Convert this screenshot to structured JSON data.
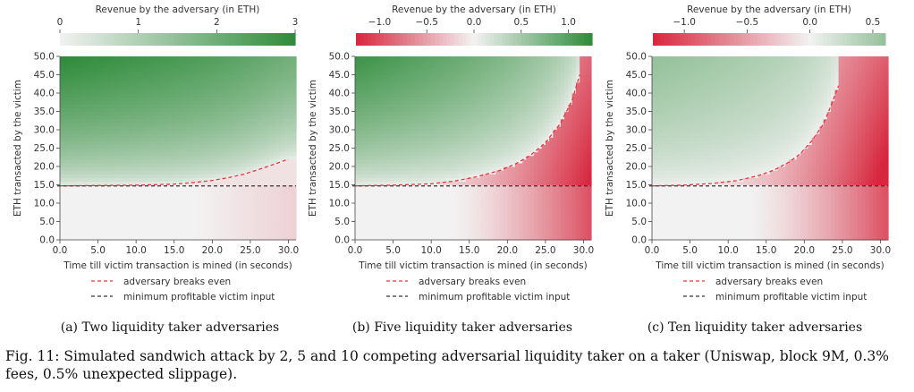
{
  "legend_labels": {
    "breakeven": "adversary breaks even",
    "minimum": "minimum profitable victim input"
  },
  "colors": {
    "negative": "#d7263d",
    "neutral": "#f2f2f2",
    "positive": "#2e8b3a",
    "breakeven_line": "#e8353a",
    "minimum_line": "#333333"
  },
  "chart_data": [
    {
      "type": "heatmap",
      "colorbar_label": "Revenue by the adversary (in ETH)",
      "colorbar_range": [
        0,
        3
      ],
      "colorbar_ticks": [
        "0",
        "1",
        "2",
        "3"
      ],
      "colorbar_tick_values": [
        0,
        1,
        2,
        3
      ],
      "xlabel": "Time till victim transaction is mined (in seconds)",
      "ylabel": "ETH transacted by the victim",
      "xlim": [
        0,
        31
      ],
      "ylim": [
        0,
        50
      ],
      "xticks": [
        "0.0",
        "5.0",
        "10.0",
        "15.0",
        "20.0",
        "25.0",
        "30.0"
      ],
      "yticks": [
        "0.0",
        "5.0",
        "10.0",
        "15.0",
        "20.0",
        "25.0",
        "30.0",
        "35.0",
        "40.0",
        "45.0",
        "50.0"
      ],
      "breakeven_time": 18,
      "breakeven_x": [
        0,
        5,
        10,
        15,
        18,
        20,
        22,
        24,
        26,
        28,
        30
      ],
      "breakeven_y": [
        14.7,
        14.8,
        14.9,
        15.2,
        15.7,
        16.2,
        16.9,
        17.8,
        19.1,
        20.5,
        22.0
      ],
      "minimum_profitable_input": 14.7,
      "caption": "(a) Two liquidity taker adversaries"
    },
    {
      "type": "heatmap",
      "colorbar_label": "Revenue by the adversary (in ETH)",
      "colorbar_range": [
        -1.25,
        1.25
      ],
      "colorbar_ticks": [
        "−1.0",
        "−0.5",
        "0.0",
        "0.5",
        "1.0"
      ],
      "colorbar_tick_values": [
        -1.0,
        -0.5,
        0.0,
        0.5,
        1.0
      ],
      "xlabel": "Time till victim transaction is mined (in seconds)",
      "ylabel": "ETH transacted by the victim",
      "xlim": [
        0,
        31
      ],
      "ylim": [
        0,
        50
      ],
      "xticks": [
        "0.0",
        "5.0",
        "10.0",
        "15.0",
        "20.0",
        "25.0",
        "30.0"
      ],
      "yticks": [
        "0.0",
        "5.0",
        "10.0",
        "15.0",
        "20.0",
        "25.0",
        "30.0",
        "35.0",
        "40.0",
        "45.0",
        "50.0"
      ],
      "breakeven_time": 12.5,
      "breakeven_x": [
        0,
        5,
        10,
        13,
        16,
        19,
        21,
        23,
        25,
        27,
        28.5,
        29.5
      ],
      "breakeven_y": [
        14.7,
        14.9,
        15.3,
        16.0,
        17.2,
        18.9,
        20.6,
        23.0,
        26.5,
        31.8,
        38.0,
        45.0
      ],
      "minimum_profitable_input": 14.7,
      "caption": "(b) Five liquidity taker adversaries"
    },
    {
      "type": "heatmap",
      "colorbar_label": "Revenue by the adversary (in ETH)",
      "colorbar_range": [
        -1.25,
        0.6
      ],
      "colorbar_ticks": [
        "−1.0",
        "−0.5",
        "0.0",
        "0.5"
      ],
      "colorbar_tick_values": [
        -1.0,
        -0.5,
        0.0,
        0.5
      ],
      "xlabel": "Time till victim transaction is mined (in seconds)",
      "ylabel": "ETH transacted by the victim",
      "xlim": [
        0,
        31
      ],
      "ylim": [
        0,
        50
      ],
      "xticks": [
        "0.0",
        "5.0",
        "10.0",
        "15.0",
        "20.0",
        "25.0",
        "30.0"
      ],
      "yticks": [
        "0.0",
        "5.0",
        "10.0",
        "15.0",
        "20.0",
        "25.0",
        "30.0",
        "35.0",
        "40.0",
        "45.0",
        "50.0"
      ],
      "breakeven_time": 12.5,
      "breakeven_x": [
        0,
        4,
        8,
        11,
        14,
        16,
        18,
        19.5,
        21,
        22.5,
        23.5,
        24.5
      ],
      "breakeven_y": [
        14.7,
        14.9,
        15.4,
        16.1,
        17.5,
        19.0,
        21.2,
        23.5,
        27.0,
        31.5,
        36.5,
        42.0
      ],
      "minimum_profitable_input": 14.7,
      "caption": "(c) Ten liquidity taker adversaries"
    }
  ],
  "figure_caption": "Fig. 11: Simulated sandwich attack by 2, 5 and 10 competing adversarial liquidity taker on a taker (Uniswap, block 9M, 0.3% fees, 0.5% unexpected slippage)."
}
